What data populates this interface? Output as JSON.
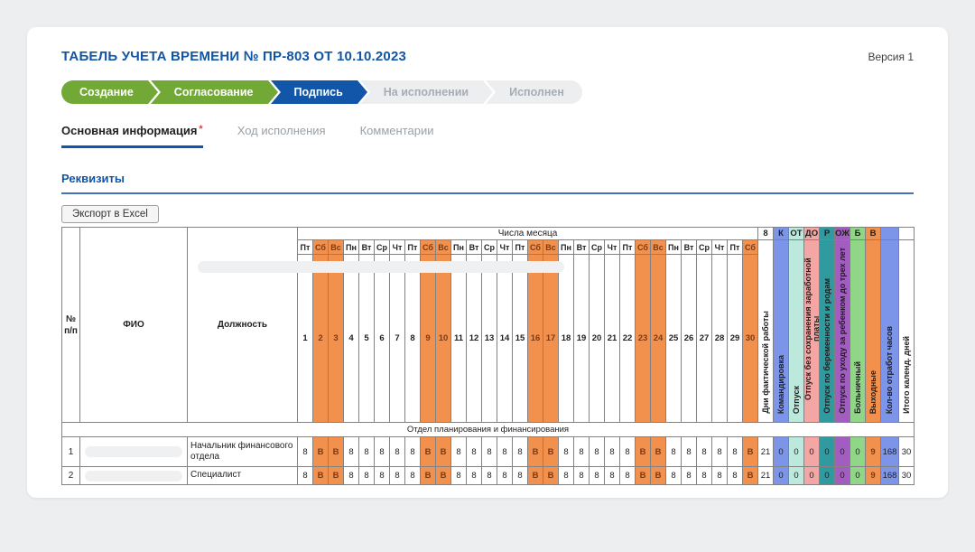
{
  "page": {
    "background": "#EDEEF0",
    "accent_blue": "#1156A8",
    "version_label": "Версия 1"
  },
  "header": {
    "title": "ТАБЕЛЬ УЧЕТА ВРЕМЕНИ № ПР-803 ОТ 10.10.2023"
  },
  "workflow": {
    "stages": [
      {
        "label": "Создание",
        "state": "done"
      },
      {
        "label": "Согласование",
        "state": "done"
      },
      {
        "label": "Подпись",
        "state": "current"
      },
      {
        "label": "На исполнении",
        "state": "pending"
      },
      {
        "label": "Исполнен",
        "state": "pending"
      }
    ],
    "colors": {
      "done": "#72A936",
      "current": "#1156A8",
      "pending": "#ECEEF0",
      "pending_text": "#A7ADB5"
    }
  },
  "tabs": [
    {
      "label": "Основная информация",
      "active": true,
      "required_marker": "*"
    },
    {
      "label": "Ход исполнения",
      "active": false
    },
    {
      "label": "Комментарии",
      "active": false
    }
  ],
  "section": {
    "title": "Реквизиты"
  },
  "toolbar": {
    "export_button": "Экспорт в Excel"
  },
  "table": {
    "headers": {
      "num": "№\nп/п",
      "fio": "ФИО",
      "position": "Должность",
      "days_group": "Числа месяца"
    },
    "weekend_color": "#F2914E",
    "weekend_text_color": "#7A3A14",
    "days": [
      {
        "n": "1",
        "dow": "Пт",
        "weekend": false
      },
      {
        "n": "2",
        "dow": "Сб",
        "weekend": true
      },
      {
        "n": "3",
        "dow": "Вс",
        "weekend": true
      },
      {
        "n": "4",
        "dow": "Пн",
        "weekend": false
      },
      {
        "n": "5",
        "dow": "Вт",
        "weekend": false
      },
      {
        "n": "6",
        "dow": "Ср",
        "weekend": false
      },
      {
        "n": "7",
        "dow": "Чт",
        "weekend": false
      },
      {
        "n": "8",
        "dow": "Пт",
        "weekend": false
      },
      {
        "n": "9",
        "dow": "Сб",
        "weekend": true
      },
      {
        "n": "10",
        "dow": "Вс",
        "weekend": true
      },
      {
        "n": "11",
        "dow": "Пн",
        "weekend": false
      },
      {
        "n": "12",
        "dow": "Вт",
        "weekend": false
      },
      {
        "n": "13",
        "dow": "Ср",
        "weekend": false
      },
      {
        "n": "14",
        "dow": "Чт",
        "weekend": false
      },
      {
        "n": "15",
        "dow": "Пт",
        "weekend": false
      },
      {
        "n": "16",
        "dow": "Сб",
        "weekend": true
      },
      {
        "n": "17",
        "dow": "Вс",
        "weekend": true
      },
      {
        "n": "18",
        "dow": "Пн",
        "weekend": false
      },
      {
        "n": "19",
        "dow": "Вт",
        "weekend": false
      },
      {
        "n": "20",
        "dow": "Ср",
        "weekend": false
      },
      {
        "n": "21",
        "dow": "Чт",
        "weekend": false
      },
      {
        "n": "22",
        "dow": "Пт",
        "weekend": false
      },
      {
        "n": "23",
        "dow": "Сб",
        "weekend": true
      },
      {
        "n": "24",
        "dow": "Вс",
        "weekend": true
      },
      {
        "n": "25",
        "dow": "Пн",
        "weekend": false
      },
      {
        "n": "26",
        "dow": "Вт",
        "weekend": false
      },
      {
        "n": "27",
        "dow": "Ср",
        "weekend": false
      },
      {
        "n": "28",
        "dow": "Чт",
        "weekend": false
      },
      {
        "n": "29",
        "dow": "Пт",
        "weekend": false
      },
      {
        "n": "30",
        "dow": "Сб",
        "weekend": true
      }
    ],
    "summary_columns": [
      {
        "code": "8",
        "label": "Дни фактической работы",
        "color": "#FFFFFF"
      },
      {
        "code": "К",
        "label": "Командировка",
        "color": "#7D95E8"
      },
      {
        "code": "ОТ",
        "label": "Отпуск",
        "color": "#BDE9DC"
      },
      {
        "code": "ДО",
        "label": "Отпуск без сохранения заработной платы",
        "color": "#F4A6A4"
      },
      {
        "code": "Р",
        "label": "Отпуск по беременности и родам",
        "color": "#2F9AA0"
      },
      {
        "code": "ОЖ",
        "label": "Отпуск по уходу за ребенком до трех лет",
        "color": "#A35CC0"
      },
      {
        "code": "Б",
        "label": "Больничный",
        "color": "#8FD787"
      },
      {
        "code": "В",
        "label": "Выходные",
        "color": "#F2914E"
      },
      {
        "code": "",
        "label": "Кол-во отработ часов",
        "color": "#7D95E8"
      },
      {
        "code": "",
        "label": "Итого календ. дней",
        "color": "#FFFFFF"
      }
    ],
    "group_row_label": "Отдел планирования и финансирования",
    "rows": [
      {
        "num": "1",
        "fio": "",
        "position": "Начальник финансового отдела",
        "day_values": [
          "8",
          "В",
          "В",
          "8",
          "8",
          "8",
          "8",
          "8",
          "В",
          "В",
          "8",
          "8",
          "8",
          "8",
          "8",
          "В",
          "В",
          "8",
          "8",
          "8",
          "8",
          "8",
          "В",
          "В",
          "8",
          "8",
          "8",
          "8",
          "8",
          "В"
        ],
        "summary": [
          "21",
          "0",
          "0",
          "0",
          "0",
          "0",
          "0",
          "9",
          "168",
          "30"
        ]
      },
      {
        "num": "2",
        "fio": "",
        "position": "Специалист",
        "day_values": [
          "8",
          "В",
          "В",
          "8",
          "8",
          "8",
          "8",
          "8",
          "В",
          "В",
          "8",
          "8",
          "8",
          "8",
          "8",
          "В",
          "В",
          "8",
          "8",
          "8",
          "8",
          "8",
          "В",
          "В",
          "8",
          "8",
          "8",
          "8",
          "8",
          "В"
        ],
        "summary": [
          "21",
          "0",
          "0",
          "0",
          "0",
          "0",
          "0",
          "9",
          "168",
          "30"
        ]
      }
    ]
  }
}
